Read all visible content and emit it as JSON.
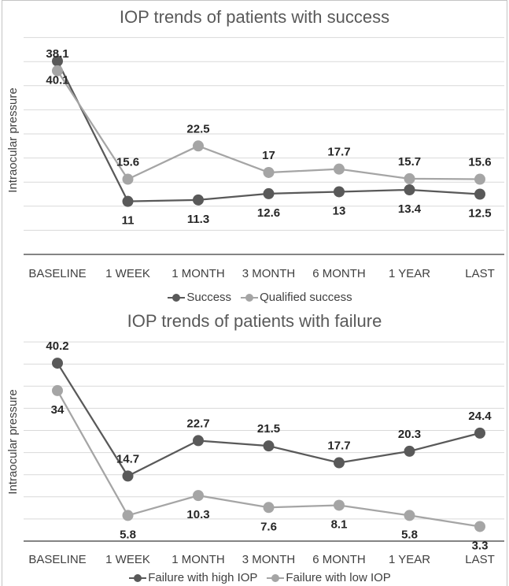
{
  "chart_data": [
    {
      "type": "line",
      "title": "IOP trends of patients with success",
      "ylabel": "Intraocular pressure",
      "categories": [
        "BASELINE",
        "1 WEEK",
        "1 MONTH",
        "3 MONTH",
        "6 MONTH",
        "1 YEAR",
        "LAST"
      ],
      "series": [
        {
          "name": "Success",
          "color": "#595959",
          "values": [
            40.1,
            11,
            11.3,
            12.6,
            13,
            13.4,
            12.5
          ]
        },
        {
          "name": "Qualified success",
          "color": "#a5a5a5",
          "values": [
            38.1,
            15.6,
            22.5,
            17,
            17.7,
            15.7,
            15.6
          ]
        }
      ],
      "ylim": [
        0,
        45
      ],
      "grid": true,
      "legend": "bottom"
    },
    {
      "type": "line",
      "title": "IOP trends of patients with failure",
      "ylabel": "Intraocular pressure",
      "categories": [
        "BASELINE",
        "1 WEEK",
        "1 MONTH",
        "3 MONTH",
        "6 MONTH",
        "1 YEAR",
        "LAST"
      ],
      "series": [
        {
          "name": "Failure with high IOP",
          "color": "#595959",
          "values": [
            40.2,
            14.7,
            22.7,
            21.5,
            17.7,
            20.3,
            24.4
          ]
        },
        {
          "name": "Failure with low IOP",
          "color": "#a5a5a5",
          "values": [
            34,
            5.8,
            10.3,
            7.6,
            8.1,
            5.8,
            3.3
          ]
        }
      ],
      "ylim": [
        0,
        45
      ],
      "grid": true,
      "legend": "bottom"
    }
  ]
}
